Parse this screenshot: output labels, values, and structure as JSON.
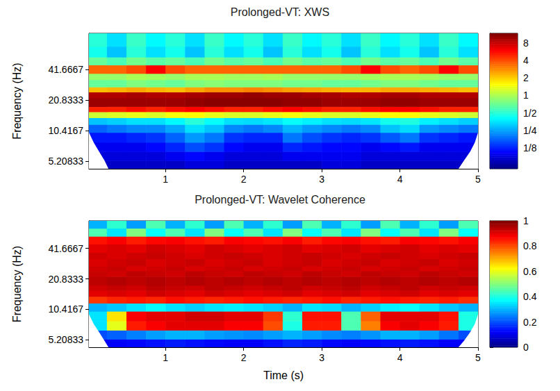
{
  "chart_data": [
    {
      "type": "heatmap",
      "title": "Prolonged-VT: XWS",
      "ylabel": "Frequency (Hz)",
      "xlim": [
        0.02,
        5
      ],
      "xticks": [
        1,
        2,
        3,
        4,
        5
      ],
      "ylim": [
        4.4,
        94
      ],
      "yticks": [
        5.20833,
        10.4167,
        20.8333,
        41.6667
      ],
      "log": "y",
      "cells": {
        "time_edges": [
          0,
          0.25,
          0.5,
          0.75,
          1,
          1.25,
          1.5,
          1.75,
          2,
          2.25,
          2.5,
          2.75,
          3,
          3.25,
          3.5,
          3.75,
          4,
          4.25,
          4.5,
          4.75,
          5
        ],
        "frequency_edges": [
          4.4,
          5.3,
          6.5,
          8,
          10,
          12,
          14,
          16,
          18,
          22,
          25,
          28,
          33,
          38,
          46,
          55,
          70,
          94
        ],
        "values": [
          [
            0.08,
            0.08,
            0.08,
            0.08,
            0.08,
            0.09,
            0.09,
            0.08,
            0.08,
            0.08,
            0.08,
            0.08,
            0.09,
            0.09,
            0.08,
            0.08,
            0.08,
            0.08,
            0.08,
            0.08
          ],
          [
            0.09,
            0.09,
            0.09,
            0.09,
            0.1,
            0.11,
            0.1,
            0.09,
            0.09,
            0.09,
            0.1,
            0.1,
            0.1,
            0.1,
            0.09,
            0.09,
            0.09,
            0.09,
            0.09,
            0.09
          ],
          [
            0.1,
            0.1,
            0.1,
            0.11,
            0.13,
            0.16,
            0.14,
            0.11,
            0.1,
            0.1,
            0.13,
            0.12,
            0.11,
            0.11,
            0.1,
            0.11,
            0.12,
            0.1,
            0.1,
            0.1
          ],
          [
            0.12,
            0.12,
            0.13,
            0.14,
            0.18,
            0.24,
            0.2,
            0.14,
            0.13,
            0.13,
            0.2,
            0.16,
            0.14,
            0.13,
            0.14,
            0.17,
            0.2,
            0.14,
            0.13,
            0.12
          ],
          [
            0.18,
            0.2,
            0.22,
            0.22,
            0.26,
            0.35,
            0.3,
            0.22,
            0.2,
            0.22,
            0.28,
            0.24,
            0.22,
            0.2,
            0.22,
            0.3,
            0.34,
            0.24,
            0.22,
            0.2
          ],
          [
            0.3,
            0.32,
            0.35,
            0.35,
            0.4,
            0.5,
            0.42,
            0.35,
            0.34,
            0.36,
            0.42,
            0.38,
            0.35,
            0.34,
            0.36,
            0.45,
            0.48,
            0.38,
            0.35,
            0.32
          ],
          [
            1.2,
            1.3,
            1.4,
            1.3,
            1.5,
            1.6,
            1.4,
            1.3,
            1.3,
            1.4,
            1.5,
            1.4,
            1.3,
            1.3,
            1.4,
            1.6,
            1.6,
            1.4,
            1.3,
            1.2
          ],
          [
            5,
            5,
            5.5,
            5,
            5.5,
            6,
            5.5,
            5,
            5,
            5.5,
            6,
            5.5,
            5,
            5,
            5.5,
            6,
            6,
            5.5,
            5,
            5
          ],
          [
            10,
            10,
            10,
            10,
            10,
            10.5,
            11,
            11,
            11,
            11,
            10.5,
            10.5,
            10,
            10,
            10,
            10.5,
            10.5,
            10,
            10,
            10
          ],
          [
            9,
            9,
            9.5,
            9,
            9,
            9.5,
            10,
            10,
            10.5,
            10,
            10,
            9.5,
            9.5,
            9,
            9,
            9.5,
            9.5,
            9,
            9,
            9
          ],
          [
            2.2,
            2.3,
            2.5,
            2.3,
            2.2,
            2.5,
            2.8,
            2.8,
            3,
            2.8,
            2.6,
            2.5,
            2.4,
            2.3,
            2.3,
            2.5,
            2.5,
            2.4,
            2.3,
            2.2
          ],
          [
            0.7,
            0.7,
            0.8,
            0.75,
            0.7,
            0.8,
            0.85,
            0.8,
            0.8,
            0.8,
            0.75,
            0.75,
            0.7,
            0.7,
            0.75,
            0.8,
            0.8,
            0.75,
            0.7,
            0.7
          ],
          [
            0.9,
            0.9,
            1,
            0.95,
            0.9,
            1,
            1,
            0.95,
            0.95,
            1,
            0.9,
            0.9,
            0.9,
            0.9,
            0.95,
            1,
            1,
            0.95,
            0.9,
            0.9
          ],
          [
            3.5,
            3.5,
            4,
            6,
            4,
            3.5,
            3.5,
            3.5,
            3.5,
            3.5,
            3.5,
            3.5,
            3.5,
            4,
            6,
            4,
            3.5,
            4,
            6,
            4
          ],
          [
            0.7,
            0.6,
            0.75,
            0.65,
            0.7,
            0.6,
            0.75,
            0.65,
            0.7,
            0.6,
            0.75,
            0.65,
            0.7,
            0.6,
            0.75,
            0.65,
            0.7,
            0.6,
            0.75,
            0.65
          ],
          [
            0.45,
            0.3,
            0.5,
            0.35,
            0.45,
            0.3,
            0.5,
            0.35,
            0.45,
            0.3,
            0.5,
            0.35,
            0.45,
            0.3,
            0.5,
            0.35,
            0.45,
            0.3,
            0.5,
            0.35
          ],
          [
            0.5,
            0.35,
            0.55,
            0.4,
            0.5,
            0.35,
            0.55,
            0.4,
            0.5,
            0.35,
            0.55,
            0.4,
            0.5,
            0.35,
            0.55,
            0.4,
            0.5,
            0.35,
            0.55,
            0.4
          ]
        ]
      },
      "coi": {
        "time": [
          0.02,
          0.08,
          0.15,
          0.22,
          0.27,
          4.75,
          4.82,
          4.9,
          4.96,
          5
        ],
        "frequency": [
          10,
          8,
          6.5,
          5.3,
          4.4,
          4.4,
          5.3,
          6.5,
          8,
          10
        ]
      },
      "colorbar": {
        "range": [
          0.055,
          11.6
        ],
        "log": true,
        "ticks": [
          {
            "value": 0.125,
            "label": "1/8"
          },
          {
            "value": 0.25,
            "label": "1/4"
          },
          {
            "value": 0.5,
            "label": "1/2"
          },
          1,
          2,
          4,
          8
        ]
      }
    },
    {
      "type": "heatmap",
      "title": "Prolonged-VT: Wavelet Coherence",
      "ylabel": "Frequency (Hz)",
      "xlabel": "Time (s)",
      "xlim": [
        0.02,
        5
      ],
      "xticks": [
        1,
        2,
        3,
        4,
        5
      ],
      "ylim": [
        4.4,
        78
      ],
      "yticks": [
        5.20833,
        10.4167,
        20.8333,
        41.6667
      ],
      "log": "y",
      "cells": {
        "time_edges": [
          0,
          0.25,
          0.5,
          0.75,
          1,
          1.25,
          1.5,
          1.75,
          2,
          2.25,
          2.5,
          2.75,
          3,
          3.25,
          3.5,
          3.75,
          4,
          4.25,
          4.5,
          4.75,
          5
        ],
        "frequency_edges": [
          4.4,
          5.3,
          6.5,
          8,
          10,
          12,
          14,
          16,
          18,
          22,
          25,
          28,
          33,
          38,
          46,
          55,
          66,
          78
        ],
        "values": [
          [
            0.12,
            0.12,
            0.13,
            0.14,
            0.15,
            0.14,
            0.13,
            0.12,
            0.12,
            0.14,
            0.16,
            0.15,
            0.13,
            0.12,
            0.13,
            0.14,
            0.15,
            0.14,
            0.12,
            0.12
          ],
          [
            0.2,
            0.22,
            0.25,
            0.28,
            0.3,
            0.3,
            0.28,
            0.27,
            0.26,
            0.28,
            0.3,
            0.28,
            0.26,
            0.25,
            0.27,
            0.3,
            0.3,
            0.28,
            0.24,
            0.2
          ],
          [
            0.35,
            0.6,
            0.85,
            0.88,
            0.9,
            0.9,
            0.9,
            0.88,
            0.88,
            0.8,
            0.4,
            0.85,
            0.85,
            0.45,
            0.75,
            0.88,
            0.9,
            0.88,
            0.85,
            0.4
          ],
          [
            0.35,
            0.65,
            0.88,
            0.9,
            0.9,
            0.92,
            0.92,
            0.9,
            0.9,
            0.82,
            0.42,
            0.86,
            0.86,
            0.45,
            0.78,
            0.9,
            0.9,
            0.9,
            0.86,
            0.4
          ],
          [
            0.3,
            0.32,
            0.35,
            0.38,
            0.35,
            0.33,
            0.35,
            0.36,
            0.35,
            0.33,
            0.3,
            0.35,
            0.34,
            0.3,
            0.33,
            0.36,
            0.38,
            0.35,
            0.32,
            0.3
          ],
          [
            0.82,
            0.84,
            0.85,
            0.84,
            0.86,
            0.85,
            0.84,
            0.85,
            0.86,
            0.85,
            0.84,
            0.85,
            0.86,
            0.84,
            0.85,
            0.86,
            0.85,
            0.84,
            0.85,
            0.83
          ],
          [
            0.9,
            0.91,
            0.9,
            0.92,
            0.91,
            0.9,
            0.92,
            0.91,
            0.9,
            0.91,
            0.92,
            0.9,
            0.91,
            0.92,
            0.9,
            0.91,
            0.92,
            0.9,
            0.91,
            0.9
          ],
          [
            0.92,
            0.93,
            0.92,
            0.94,
            0.93,
            0.92,
            0.94,
            0.93,
            0.92,
            0.93,
            0.94,
            0.92,
            0.93,
            0.94,
            0.92,
            0.93,
            0.94,
            0.92,
            0.93,
            0.92
          ],
          [
            0.94,
            0.95,
            0.94,
            0.95,
            0.94,
            0.95,
            0.94,
            0.95,
            0.94,
            0.95,
            0.94,
            0.95,
            0.94,
            0.95,
            0.94,
            0.95,
            0.94,
            0.95,
            0.94,
            0.95
          ],
          [
            0.93,
            0.92,
            0.94,
            0.93,
            0.92,
            0.94,
            0.93,
            0.92,
            0.94,
            0.93,
            0.92,
            0.94,
            0.93,
            0.92,
            0.94,
            0.93,
            0.92,
            0.94,
            0.93,
            0.92
          ],
          [
            0.92,
            0.93,
            0.91,
            0.92,
            0.93,
            0.91,
            0.92,
            0.93,
            0.91,
            0.92,
            0.93,
            0.91,
            0.92,
            0.93,
            0.91,
            0.92,
            0.93,
            0.91,
            0.92,
            0.93
          ],
          [
            0.91,
            0.92,
            0.93,
            0.91,
            0.92,
            0.93,
            0.91,
            0.92,
            0.93,
            0.91,
            0.92,
            0.93,
            0.91,
            0.92,
            0.93,
            0.91,
            0.92,
            0.93,
            0.91,
            0.92
          ],
          [
            0.92,
            0.91,
            0.92,
            0.93,
            0.92,
            0.91,
            0.92,
            0.93,
            0.92,
            0.91,
            0.92,
            0.93,
            0.92,
            0.91,
            0.92,
            0.93,
            0.92,
            0.91,
            0.92,
            0.93
          ],
          [
            0.9,
            0.91,
            0.9,
            0.92,
            0.91,
            0.9,
            0.92,
            0.91,
            0.9,
            0.91,
            0.92,
            0.9,
            0.91,
            0.92,
            0.9,
            0.91,
            0.92,
            0.9,
            0.91,
            0.9
          ],
          [
            0.86,
            0.88,
            0.85,
            0.87,
            0.88,
            0.86,
            0.85,
            0.88,
            0.87,
            0.86,
            0.88,
            0.85,
            0.87,
            0.88,
            0.86,
            0.85,
            0.88,
            0.87,
            0.86,
            0.88
          ],
          [
            0.45,
            0.35,
            0.5,
            0.38,
            0.45,
            0.35,
            0.5,
            0.38,
            0.45,
            0.35,
            0.5,
            0.38,
            0.45,
            0.35,
            0.5,
            0.38,
            0.45,
            0.35,
            0.5,
            0.38
          ],
          [
            0.3,
            0.42,
            0.28,
            0.45,
            0.3,
            0.42,
            0.28,
            0.45,
            0.3,
            0.42,
            0.28,
            0.45,
            0.3,
            0.42,
            0.28,
            0.45,
            0.3,
            0.42,
            0.28,
            0.45
          ]
        ]
      },
      "coi": {
        "time": [
          0.02,
          0.08,
          0.15,
          0.22,
          0.27,
          4.75,
          4.82,
          4.9,
          4.96,
          5
        ],
        "frequency": [
          9.3,
          7.5,
          6.2,
          5.1,
          4.4,
          4.4,
          5.1,
          6.2,
          7.5,
          9.3
        ]
      },
      "colorbar": {
        "range": [
          0,
          1
        ],
        "log": false,
        "ticks": [
          0,
          0.2,
          0.4,
          0.6,
          0.8,
          1
        ]
      }
    }
  ]
}
